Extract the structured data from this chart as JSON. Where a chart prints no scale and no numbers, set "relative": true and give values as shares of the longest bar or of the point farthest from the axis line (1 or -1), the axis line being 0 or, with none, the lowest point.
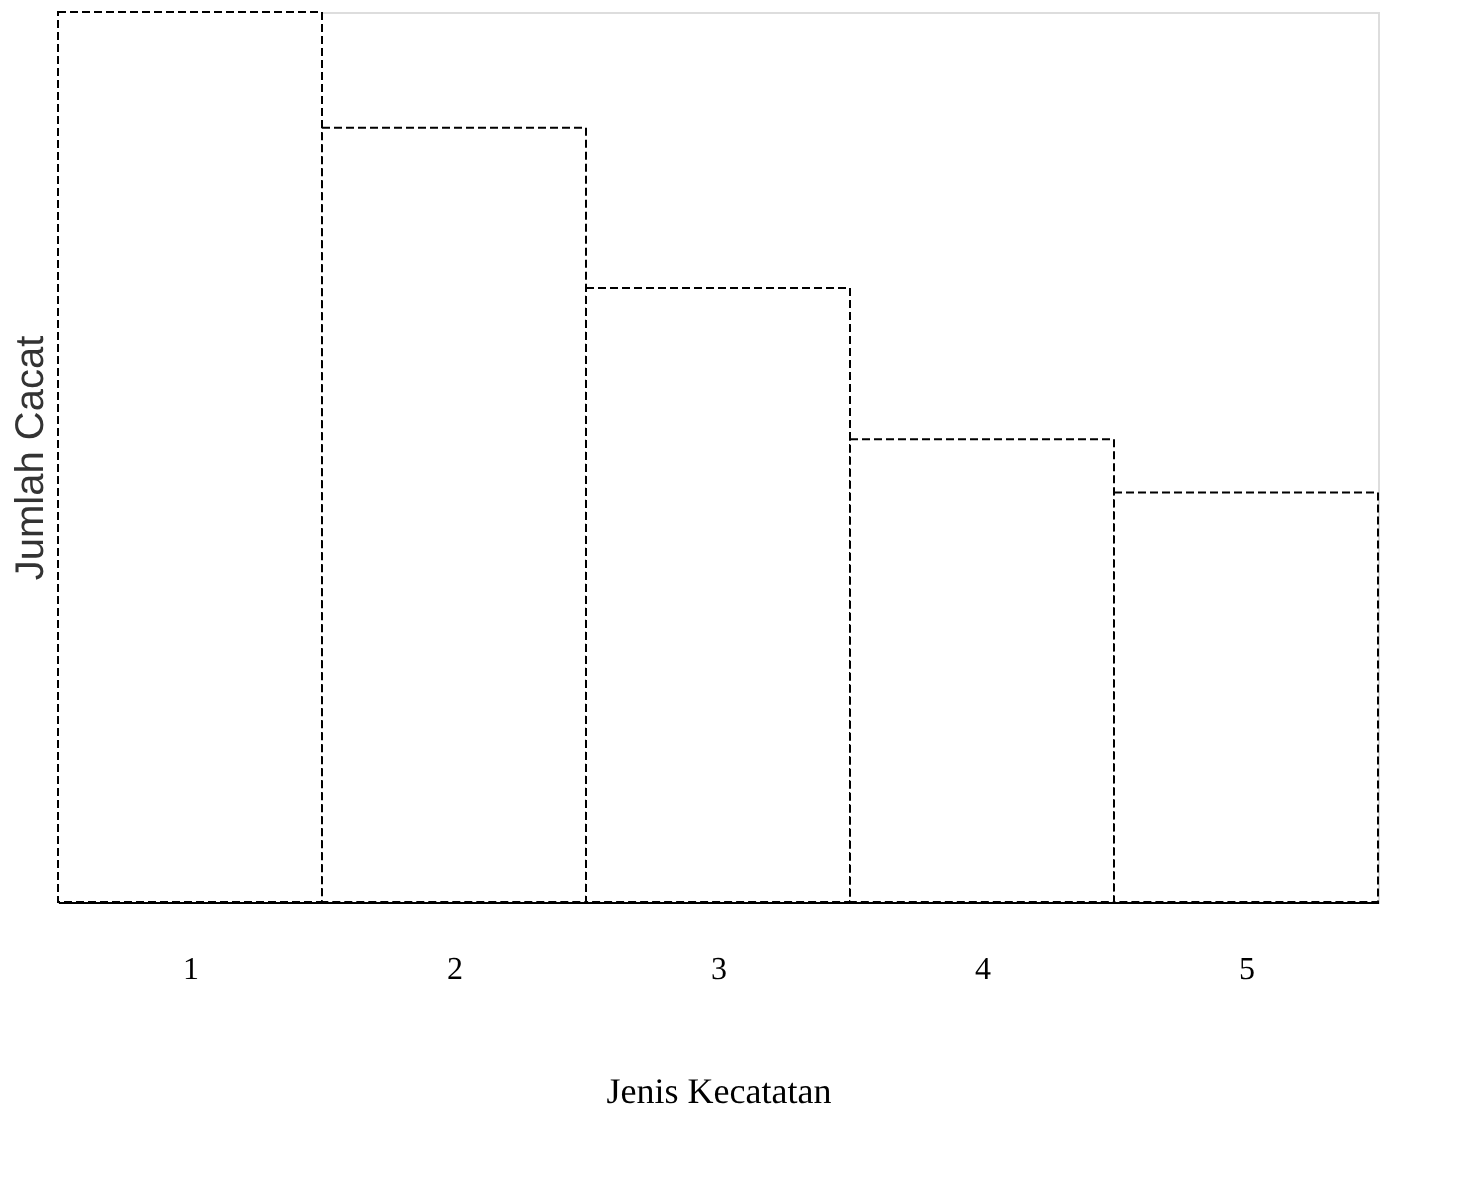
{
  "chart_data": {
    "type": "bar",
    "relative": true,
    "xlabel": "Jenis Kecatatan",
    "ylabel": "Jumlah Cacat",
    "categories": [
      "1",
      "2",
      "3",
      "4",
      "5"
    ],
    "values": [
      1,
      0.87,
      0.69,
      0.52,
      0.46
    ],
    "color": "#ffffff",
    "grid": false
  }
}
